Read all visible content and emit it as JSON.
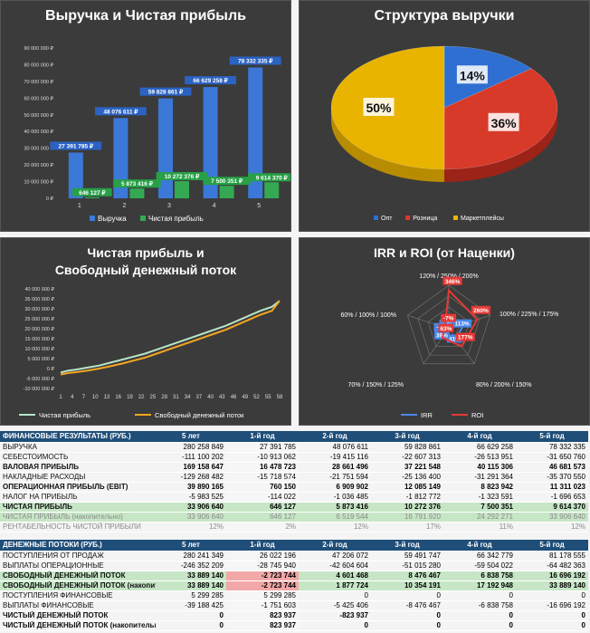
{
  "panels": {
    "revenue_title": "Выручка и Чистая прибыль",
    "structure_title": "Структура выручки",
    "cash_title_1": "Чистая прибыль и",
    "cash_title_2": "Свободный денежный поток",
    "irr_title": "IRR и ROI (от Наценки)"
  },
  "chart_data": [
    {
      "type": "bar",
      "title": "Выручка и Чистая прибыль",
      "categories": [
        "1",
        "2",
        "3",
        "4",
        "5"
      ],
      "ylim": [
        0,
        90000000
      ],
      "yticks": [
        "0 ₽",
        "10 000 000 ₽",
        "20 000 000 ₽",
        "30 000 000 ₽",
        "40 000 000 ₽",
        "50 000 000 ₽",
        "60 000 000 ₽",
        "70 000 000 ₽",
        "80 000 000 ₽",
        "90 000 000 ₽"
      ],
      "series": [
        {
          "name": "Выручка",
          "values": [
            27391785,
            48076611,
            59828861,
            66629258,
            78332335
          ],
          "labels": [
            "27 391 785 ₽",
            "48 076 611 ₽",
            "59 828 861 ₽",
            "66 629 258 ₽",
            "78 332 335 ₽"
          ],
          "color": "#3b78d8"
        },
        {
          "name": "Чистая прибыль",
          "values": [
            646127,
            5873416,
            10272376,
            7500351,
            9614370
          ],
          "labels": [
            "646 127 ₽",
            "5 873 416 ₽",
            "10 272 376 ₽",
            "7 500 351 ₽",
            "9 614 370 ₽"
          ],
          "color": "#34a853"
        }
      ]
    },
    {
      "type": "pie",
      "title": "Структура выручки",
      "categories": [
        "Опт",
        "Розница",
        "Маркетплейсы"
      ],
      "values": [
        14,
        36,
        50
      ],
      "labels": [
        "14%",
        "36%",
        "50%"
      ],
      "colors": [
        "#2e6fd1",
        "#d83a2a",
        "#e8b400"
      ]
    },
    {
      "type": "line",
      "title": "Чистая прибыль и Свободный денежный поток",
      "x_ticks": [
        "1",
        "4",
        "7",
        "10",
        "13",
        "16",
        "19",
        "22",
        "25",
        "28",
        "31",
        "34",
        "37",
        "40",
        "43",
        "46",
        "49",
        "52",
        "55",
        "58"
      ],
      "ylim": [
        -10000000,
        40000000
      ],
      "yticks": [
        "-10 000 000 ₽",
        "-5 000 000 ₽",
        "0 ₽",
        "5 000 000 ₽",
        "10 000 000 ₽",
        "15 000 000 ₽",
        "20 000 000 ₽",
        "25 000 000 ₽",
        "30 000 000 ₽",
        "35 000 000 ₽",
        "40 000 000 ₽"
      ],
      "series": [
        {
          "name": "Чистая прибыль",
          "color": "#b7e4c7",
          "x": [
            1,
            3,
            5,
            8,
            11,
            14,
            17,
            20,
            23,
            26,
            29,
            32,
            35,
            38,
            41,
            44,
            47,
            50,
            53,
            56,
            58
          ],
          "values": [
            -2000000,
            -1000000,
            -500000,
            500000,
            1500000,
            3000000,
            4500000,
            6000000,
            7500000,
            9500000,
            11500000,
            13500000,
            15500000,
            17500000,
            19500000,
            21500000,
            24000000,
            26500000,
            29000000,
            31000000,
            34000000
          ]
        },
        {
          "name": "Свободный денежный поток",
          "color": "#f5a623",
          "x": [
            1,
            3,
            5,
            8,
            11,
            14,
            17,
            20,
            23,
            26,
            29,
            32,
            35,
            38,
            41,
            44,
            47,
            50,
            53,
            56,
            58
          ],
          "values": [
            -3000000,
            -2200000,
            -1800000,
            -1000000,
            0,
            1200000,
            2500000,
            4000000,
            5500000,
            7500000,
            9500000,
            11500000,
            13500000,
            15500000,
            17500000,
            19500000,
            22000000,
            24500000,
            27000000,
            29000000,
            34000000
          ]
        }
      ]
    },
    {
      "type": "radar",
      "title": "IRR и ROI (от Наценки)",
      "axes": [
        "120% / 250% / 200%",
        "100% / 225% / 175%",
        "80% / 200% / 150%",
        "70% / 150% / 125%",
        "60% / 100% / 100%"
      ],
      "series": [
        {
          "name": "IRR",
          "color": "#4a86e8",
          "values": [
            -1,
            113,
            81,
            39,
            -12
          ],
          "labels": [
            "-1%",
            "113%",
            "81%",
            "39%",
            "-12%"
          ]
        },
        {
          "name": "ROI",
          "color": "#e53935",
          "values": [
            346,
            260,
            177,
            63,
            -7
          ],
          "labels": [
            "346%",
            "260%",
            "177%",
            "63%",
            "-7%"
          ]
        }
      ]
    }
  ],
  "fin": {
    "header": [
      "ФИНАНСОВЫЕ РЕЗУЛЬТАТЫ (РУБ.)",
      "5 лет",
      "1-й год",
      "2-й год",
      "3-й год",
      "4-й год",
      "5-й год"
    ],
    "rows": [
      {
        "cells": [
          "ВЫРУЧКА",
          "280 258 849",
          "27 391 785",
          "48 076 611",
          "59 828 861",
          "66 629 258",
          "78 332 335"
        ],
        "style": ""
      },
      {
        "cells": [
          "СЕБЕСТОИМОСТЬ",
          "-111 100 202",
          "-10 913 062",
          "-19 415 116",
          "-22 607 313",
          "-26 513 951",
          "-31 650 760"
        ],
        "style": ""
      },
      {
        "cells": [
          "ВАЛОВАЯ ПРИБЫЛЬ",
          "169 158 647",
          "16 478 723",
          "28 661 496",
          "37 221 548",
          "40 115 306",
          "46 681 573"
        ],
        "style": "bold"
      },
      {
        "cells": [
          "НАКЛАДНЫЕ РАСХОДЫ",
          "-129 268 482",
          "-15 718 574",
          "-21 751 594",
          "-25 136 400",
          "-31 291 364",
          "-35 370 550"
        ],
        "style": ""
      },
      {
        "cells": [
          "ОПЕРАЦИОННАЯ ПРИБЫЛЬ (EBIT)",
          "39 890 165",
          "760 150",
          "6 909 902",
          "12 085 149",
          "8 823 942",
          "11 311 023"
        ],
        "style": "bold"
      },
      {
        "cells": [
          "НАЛОГ НА ПРИБЫЛЬ",
          "-5 983 525",
          "-114 022",
          "-1 036 485",
          "-1 812 772",
          "-1 323 591",
          "-1 696 653"
        ],
        "style": ""
      },
      {
        "cells": [
          "ЧИСТАЯ ПРИБЫЛЬ",
          "33 906 640",
          "646 127",
          "5 873 416",
          "10 272 376",
          "7 500 351",
          "9 614 370"
        ],
        "style": "bold hl"
      },
      {
        "cells": [
          "ЧИСТАЯ ПРИБЫЛЬ (накопительно)",
          "33 906 640",
          "646 127",
          "6 519 544",
          "16 791 920",
          "24 292 271",
          "33 906 640"
        ],
        "style": "grey hl"
      },
      {
        "cells": [
          "РЕНТАБЕЛЬНОСТЬ ЧИСТОЙ ПРИБЫЛИ",
          "12%",
          "2%",
          "12%",
          "17%",
          "11%",
          "12%"
        ],
        "style": "grey"
      }
    ]
  },
  "cash": {
    "header": [
      "ДЕНЕЖНЫЕ ПОТОКИ (РУБ.)",
      "5 лет",
      "1-й год",
      "2-й год",
      "3-й год",
      "4-й год",
      "5-й год"
    ],
    "rows": [
      {
        "cells": [
          "ПОСТУПЛЕНИЯ ОТ ПРОДАЖ",
          "280 241 349",
          "26 022 196",
          "47 206 072",
          "59 491 747",
          "66 342 779",
          "81 178 555"
        ],
        "style": ""
      },
      {
        "cells": [
          "ВЫПЛАТЫ ОПЕРАЦИОННЫЕ",
          "-246 352 209",
          "-28 745 940",
          "-42 604 604",
          "-51 015 280",
          "-59 504 022",
          "-64 482 363"
        ],
        "style": ""
      },
      {
        "cells": [
          "СВОБОДНЫЙ ДЕНЕЖНЫЙ ПОТОК",
          "33 889 140",
          "-2 723 744",
          "4 601 468",
          "8 476 467",
          "6 838 758",
          "16 696 192"
        ],
        "style": "bold hl"
      },
      {
        "cells": [
          "СВОБОДНЫЙ ДЕНЕЖНЫЙ ПОТОК (накопительно)",
          "33 889 140",
          "-2 723 744",
          "1 877 724",
          "10 354 191",
          "17 192 948",
          "33 889 140"
        ],
        "style": "bold hl"
      },
      {
        "cells": [
          "ПОСТУПЛЕНИЯ ФИНАНСОВЫЕ",
          "5 299 285",
          "5 299 285",
          "0",
          "0",
          "0",
          "0"
        ],
        "style": ""
      },
      {
        "cells": [
          "ВЫПЛАТЫ ФИНАНСОВЫЕ",
          "-39 188 425",
          "-1 751 603",
          "-5 425 406",
          "-8 476 467",
          "-6 838 758",
          "-16 696 192"
        ],
        "style": ""
      },
      {
        "cells": [
          "ЧИСТЫЙ ДЕНЕЖНЫЙ ПОТОК",
          "0",
          "823 937",
          "-823 937",
          "0",
          "0",
          "0"
        ],
        "style": "bold"
      },
      {
        "cells": [
          "ЧИСТЫЙ ДЕНЕЖНЫЙ ПОТОК (накопительно)",
          "0",
          "823 937",
          "0",
          "0",
          "0",
          "0"
        ],
        "style": "bold"
      }
    ]
  }
}
